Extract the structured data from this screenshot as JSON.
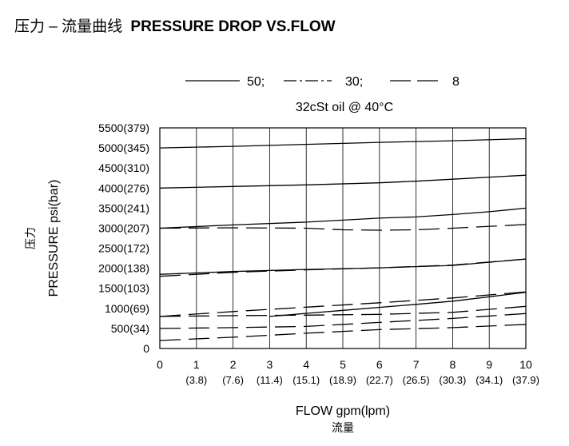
{
  "title": {
    "cn": "压力 – 流量曲线",
    "en": "PRESSURE DROP VS.FLOW"
  },
  "chart_data": {
    "type": "line",
    "title": "压力 – 流量曲线 PRESSURE DROP VS.FLOW",
    "subtitle": "32cSt  oil @ 40°C",
    "legend": {
      "placement": "top",
      "entries": [
        {
          "label": "50;",
          "style": "solid"
        },
        {
          "label": "30;",
          "style": "dash-dot"
        },
        {
          "label": "8",
          "style": "dashed"
        }
      ]
    },
    "xlabel": "FLOW gpm(lpm)",
    "xlabel_cn": "流量",
    "ylabel": "PRESSURE  psi(bar)",
    "ylabel_cn": "压力",
    "xlim": [
      0,
      10
    ],
    "ylim": [
      0,
      5500
    ],
    "x_ticks": [
      {
        "value": 0,
        "label": "0",
        "sub": ""
      },
      {
        "value": 1,
        "label": "1",
        "sub": "(3.8)"
      },
      {
        "value": 2,
        "label": "2",
        "sub": "(7.6)"
      },
      {
        "value": 3,
        "label": "3",
        "sub": "(11.4)"
      },
      {
        "value": 4,
        "label": "4",
        "sub": "(15.1)"
      },
      {
        "value": 5,
        "label": "5",
        "sub": "(18.9)"
      },
      {
        "value": 6,
        "label": "6",
        "sub": "(22.7)"
      },
      {
        "value": 7,
        "label": "7",
        "sub": "(26.5)"
      },
      {
        "value": 8,
        "label": "8",
        "sub": "(30.3)"
      },
      {
        "value": 9,
        "label": "9",
        "sub": "(34.1)"
      },
      {
        "value": 10,
        "label": "10",
        "sub": "(37.9)"
      }
    ],
    "y_ticks": [
      {
        "value": 0,
        "label": "0"
      },
      {
        "value": 500,
        "label": "500(34)"
      },
      {
        "value": 1000,
        "label": "1000(69)"
      },
      {
        "value": 1500,
        "label": "1500(103)"
      },
      {
        "value": 2000,
        "label": "2000(138)"
      },
      {
        "value": 2500,
        "label": "2500(172)"
      },
      {
        "value": 3000,
        "label": "3000(207)"
      },
      {
        "value": 3500,
        "label": "3500(241)"
      },
      {
        "value": 4000,
        "label": "4000(276)"
      },
      {
        "value": 4500,
        "label": "4500(310)"
      },
      {
        "value": 5000,
        "label": "5000(345)"
      },
      {
        "value": 5500,
        "label": "5500(379)"
      }
    ],
    "grid": "vertical",
    "series": [
      {
        "style": "solid",
        "points": [
          [
            0,
            5000
          ],
          [
            2,
            5040
          ],
          [
            4,
            5090
          ],
          [
            6,
            5140
          ],
          [
            8,
            5180
          ],
          [
            10,
            5230
          ]
        ]
      },
      {
        "style": "solid",
        "points": [
          [
            0,
            4000
          ],
          [
            2,
            4040
          ],
          [
            4,
            4080
          ],
          [
            6,
            4130
          ],
          [
            7,
            4170
          ],
          [
            8,
            4220
          ],
          [
            10,
            4320
          ]
        ]
      },
      {
        "style": "solid",
        "points": [
          [
            0,
            3000
          ],
          [
            2,
            3080
          ],
          [
            4,
            3150
          ],
          [
            6,
            3250
          ],
          [
            7,
            3280
          ],
          [
            8,
            3340
          ],
          [
            9,
            3410
          ],
          [
            10,
            3500
          ]
        ]
      },
      {
        "style": "solid",
        "points": [
          [
            0,
            1850
          ],
          [
            2,
            1920
          ],
          [
            4,
            1970
          ],
          [
            6,
            2010
          ],
          [
            8,
            2070
          ],
          [
            10,
            2230
          ]
        ]
      },
      {
        "style": "solid",
        "points": [
          [
            3,
            800
          ],
          [
            5,
            950
          ],
          [
            7,
            1100
          ],
          [
            8,
            1180
          ],
          [
            9,
            1290
          ],
          [
            10,
            1400
          ]
        ]
      },
      {
        "style": "dashed",
        "points": [
          [
            0,
            3000
          ],
          [
            2,
            3010
          ],
          [
            4,
            3000
          ],
          [
            5,
            2960
          ],
          [
            6,
            2950
          ],
          [
            7,
            2960
          ],
          [
            8,
            3000
          ],
          [
            10,
            3090
          ]
        ]
      },
      {
        "style": "dashed",
        "points": [
          [
            0,
            1800
          ],
          [
            2,
            1900
          ],
          [
            4,
            1960
          ],
          [
            6,
            2010
          ],
          [
            8,
            2080
          ],
          [
            10,
            2230
          ]
        ]
      },
      {
        "style": "dashed",
        "points": [
          [
            0,
            800
          ],
          [
            2,
            920
          ],
          [
            4,
            1030
          ],
          [
            6,
            1140
          ],
          [
            8,
            1260
          ],
          [
            10,
            1410
          ]
        ]
      },
      {
        "style": "dashed",
        "points": [
          [
            0,
            800
          ],
          [
            2,
            820
          ],
          [
            4,
            830
          ],
          [
            6,
            850
          ],
          [
            8,
            900
          ],
          [
            10,
            1050
          ]
        ]
      },
      {
        "style": "dashed",
        "points": [
          [
            0,
            500
          ],
          [
            2,
            520
          ],
          [
            4,
            550
          ],
          [
            6,
            650
          ],
          [
            8,
            750
          ],
          [
            10,
            870
          ]
        ]
      },
      {
        "style": "dashed",
        "points": [
          [
            0,
            200
          ],
          [
            2,
            280
          ],
          [
            4,
            380
          ],
          [
            6,
            470
          ],
          [
            8,
            520
          ],
          [
            10,
            600
          ]
        ]
      }
    ]
  }
}
